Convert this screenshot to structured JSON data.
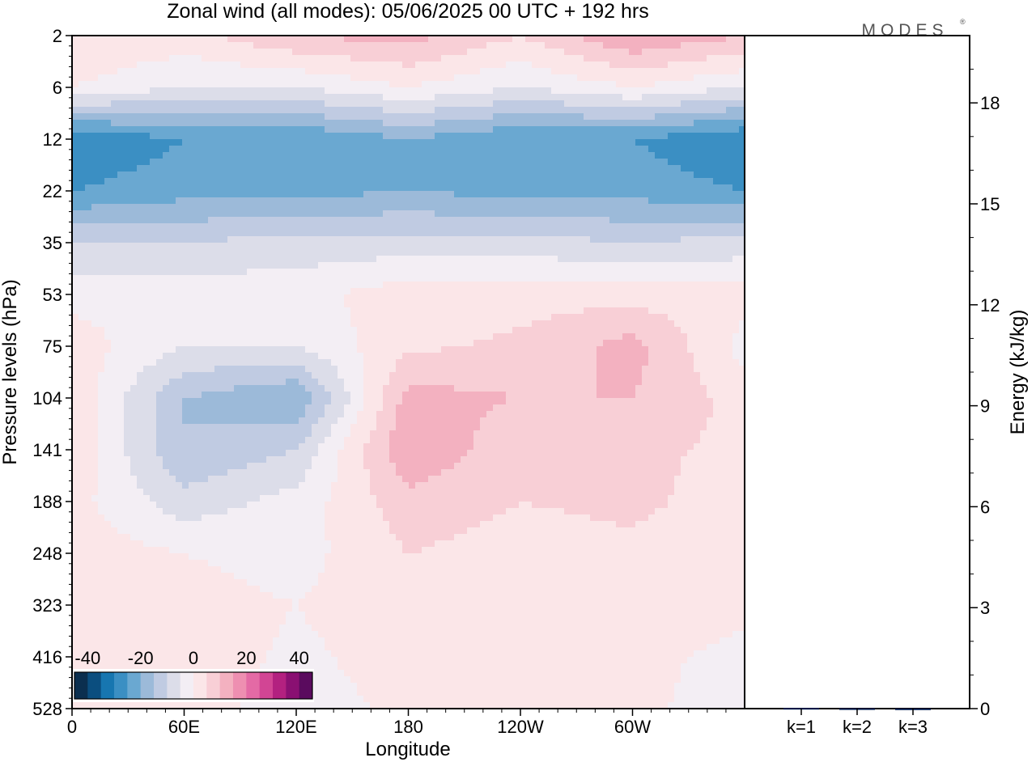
{
  "chart_data": [
    {
      "type": "heatmap",
      "title": "Zonal wind (all modes):  05/06/2025  00 UTC  + 192 hrs",
      "xlabel": "Longitude",
      "ylabel": "Pressure levels (hPa)",
      "x_ticks": [
        "0",
        "60E",
        "120E",
        "180",
        "120W",
        "60W"
      ],
      "x_tick_values": [
        0,
        60,
        120,
        180,
        240,
        300
      ],
      "xlim": [
        0,
        360
      ],
      "y_levels": [
        2,
        6,
        12,
        22,
        35,
        53,
        75,
        104,
        141,
        188,
        248,
        323,
        416,
        528
      ],
      "colorbar": {
        "labels": [
          "-40",
          "-20",
          "0",
          "20",
          "40"
        ],
        "values": [
          -40,
          -20,
          0,
          20,
          40
        ],
        "colors": [
          "#0b2f4f",
          "#0b4e7f",
          "#1776b0",
          "#3b8fc3",
          "#6aa8d1",
          "#9cbad9",
          "#c0cbe2",
          "#dcdde9",
          "#f3eef4",
          "#fbe6e8",
          "#f8cfd6",
          "#f3b1c0",
          "#ee8fb1",
          "#e46aa5",
          "#d24594",
          "#b32180",
          "#8a1072",
          "#5a0b5e"
        ]
      },
      "zonal_wind": {
        "longitudes": [
          0,
          60,
          120,
          180,
          240,
          300,
          360
        ],
        "rows": [
          [
            5,
            3,
            10,
            12,
            5,
            15,
            10
          ],
          [
            0,
            -5,
            -5,
            0,
            -5,
            0,
            -5
          ],
          [
            -30,
            -25,
            -25,
            -20,
            -25,
            -25,
            -30
          ],
          [
            -25,
            -22,
            -22,
            -20,
            -22,
            -22,
            -25
          ],
          [
            -10,
            -10,
            -8,
            -8,
            -8,
            -10,
            -8
          ],
          [
            -2,
            -2,
            -2,
            3,
            3,
            3,
            2
          ],
          [
            3,
            -5,
            -5,
            4,
            6,
            12,
            -2
          ],
          [
            4,
            -15,
            -20,
            12,
            10,
            10,
            3
          ],
          [
            4,
            -15,
            -10,
            15,
            6,
            6,
            4
          ],
          [
            2,
            -8,
            -3,
            8,
            5,
            6,
            3
          ],
          [
            3,
            0,
            -2,
            5,
            3,
            4,
            2
          ],
          [
            4,
            2,
            0,
            3,
            2,
            2,
            1
          ],
          [
            2,
            3,
            -1,
            2,
            2,
            1,
            -1
          ],
          [
            1,
            2,
            -2,
            1,
            1,
            1,
            -2
          ]
        ]
      }
    },
    {
      "type": "bar",
      "ylabel": "Energy (kJ/kg)",
      "categories": [
        "k=1",
        "k=2",
        "k=3"
      ],
      "values": [
        0.02,
        0.01,
        0.005
      ],
      "ylim": [
        0,
        20
      ],
      "y_ticks": [
        0,
        3,
        6,
        9,
        12,
        15,
        18
      ],
      "colors": [
        "#001a4d",
        "#001a4d",
        "#001a4d"
      ]
    }
  ],
  "branding": {
    "logo_text": "MODES"
  }
}
